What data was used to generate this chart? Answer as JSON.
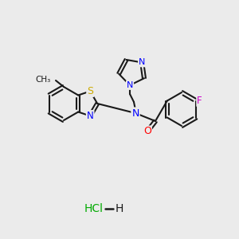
{
  "background_color": "#ebebeb",
  "bond_color": "#1a1a1a",
  "atom_colors": {
    "N": "#0000ff",
    "S": "#ccaa00",
    "O": "#ff0000",
    "F": "#cc00cc",
    "C": "#1a1a1a",
    "Cl": "#00aa00",
    "H": "#1a1a1a"
  },
  "figsize": [
    3.0,
    3.0
  ],
  "dpi": 100
}
